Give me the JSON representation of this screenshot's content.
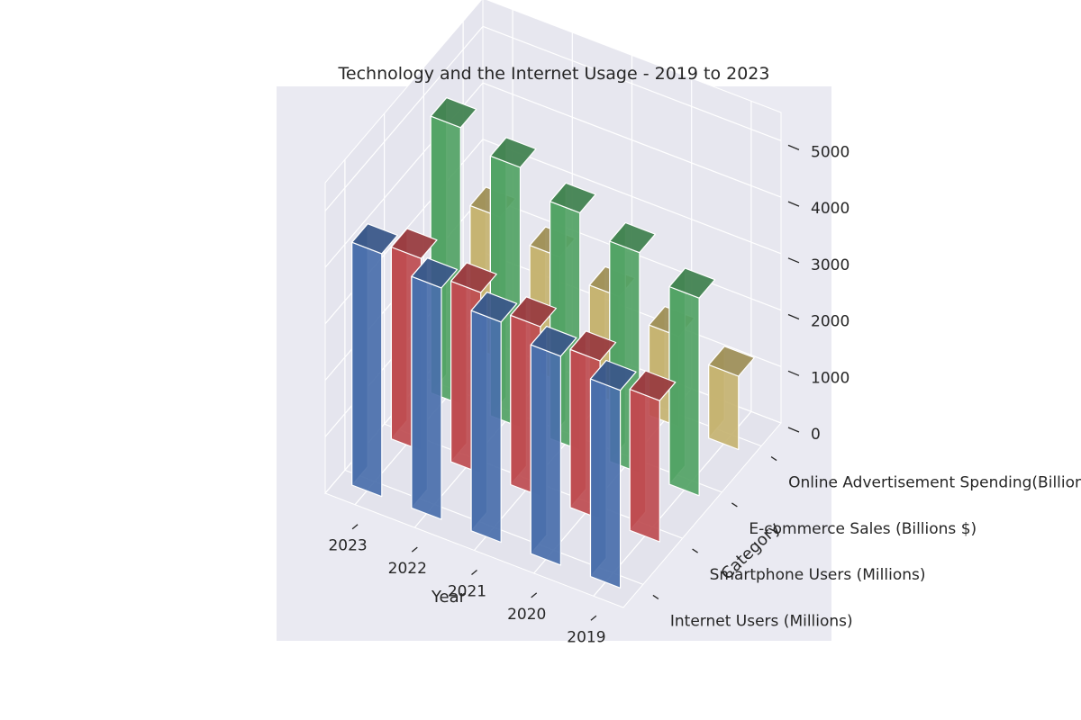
{
  "chart_data": {
    "type": "bar",
    "title": "Technology and the Internet Usage - 2019 to 2023",
    "xlabel": "Year",
    "ylabel": "Category",
    "zlabel": "",
    "categories": [
      "2019",
      "2020",
      "2021",
      "2022",
      "2023"
    ],
    "year_axis_order": [
      "2023",
      "2022",
      "2021",
      "2020",
      "2019"
    ],
    "z_ticks": [
      "0",
      "1000",
      "2000",
      "3000",
      "4000",
      "5000"
    ],
    "zlim": [
      0,
      5500
    ],
    "grid": true,
    "series": [
      {
        "name": "Internet Users (Millions)",
        "color": "#4c72b0",
        "values": [
          3500,
          3700,
          3900,
          4100,
          4300
        ]
      },
      {
        "name": "Smartphone Users (Millions)",
        "color": "#c44e52",
        "values": [
          2500,
          2800,
          3000,
          3200,
          3400
        ]
      },
      {
        "name": "E-commerce Sales (Billions $)",
        "color": "#55a868",
        "values": [
          3500,
          3900,
          4200,
          4600,
          4900
        ]
      },
      {
        "name": "Online Advertisement Spending(Billions $)",
        "color": "#ccb974",
        "values": [
          1300,
          1600,
          1900,
          2200,
          2500
        ]
      }
    ]
  }
}
